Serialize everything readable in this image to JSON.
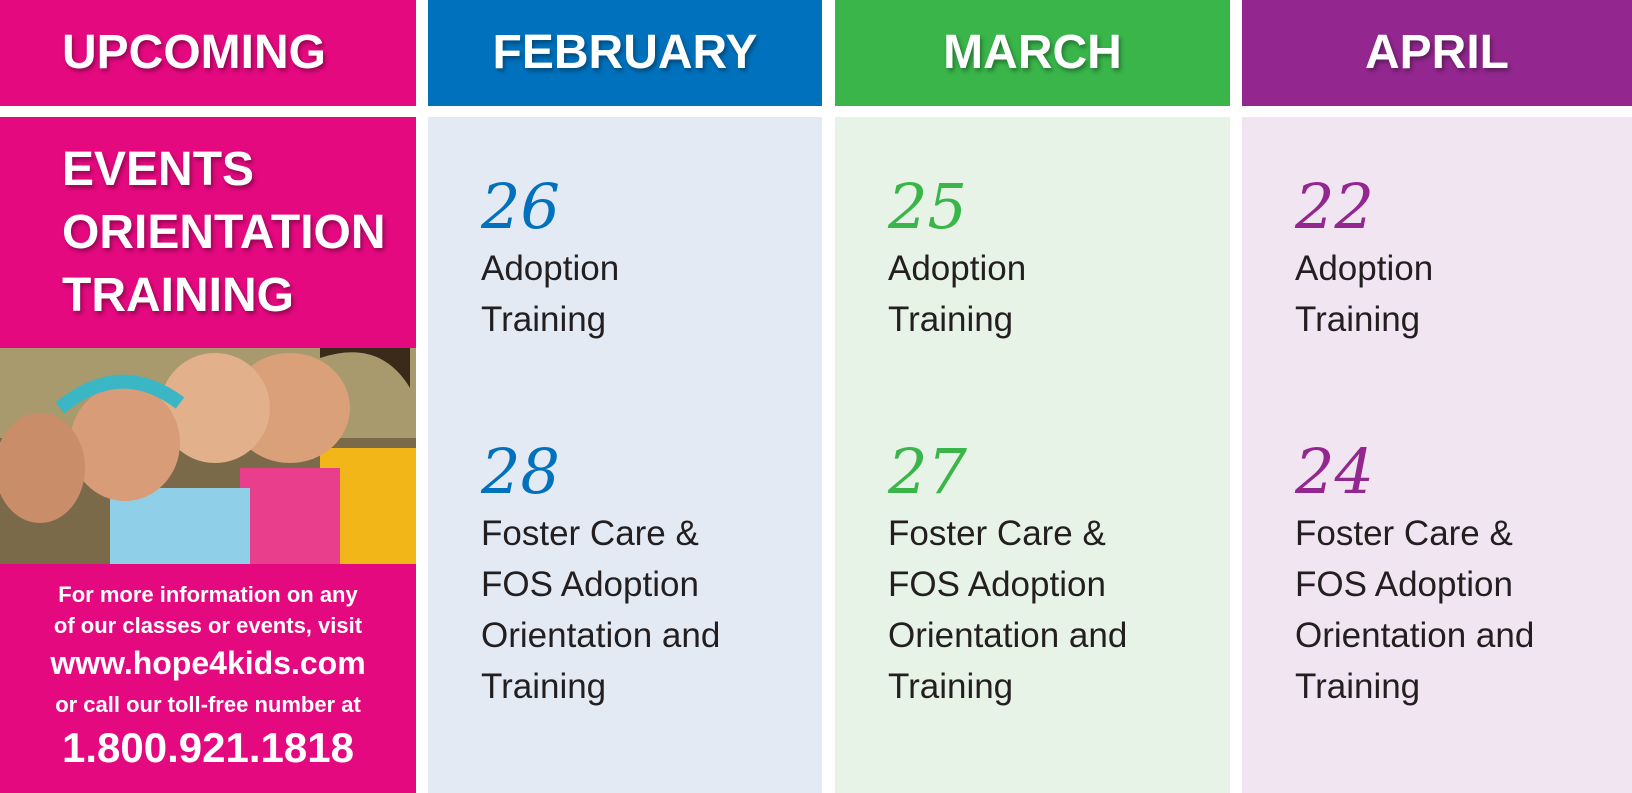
{
  "sidebar": {
    "heading": "UPCOMING",
    "subheading": [
      "EVENTS",
      "ORIENTATION",
      "TRAINING"
    ],
    "info": [
      "For more information on any",
      "of our classes or events, visit"
    ],
    "website": "www.hope4kids.com",
    "call": "or call our toll-free number at",
    "phone": "1.800.921.1818"
  },
  "months": [
    {
      "name": "FEBRUARY",
      "color": "#0071bc",
      "background": "#e3eaf4",
      "events": [
        {
          "day": 26,
          "title": [
            "Adoption",
            "Training"
          ]
        },
        {
          "day": 28,
          "title": [
            "Foster Care &",
            "FOS Adoption",
            "Orientation and",
            "Training"
          ]
        }
      ]
    },
    {
      "name": "MARCH",
      "color": "#39b54a",
      "background": "#e8f3e7",
      "events": [
        {
          "day": 25,
          "title": [
            "Adoption",
            "Training"
          ]
        },
        {
          "day": 27,
          "title": [
            "Foster Care &",
            "FOS Adoption",
            "Orientation and",
            "Training"
          ]
        }
      ]
    },
    {
      "name": "APRIL",
      "color": "#93278f",
      "background": "#f1e5f1",
      "events": [
        {
          "day": 22,
          "title": [
            "Adoption",
            "Training"
          ]
        },
        {
          "day": 24,
          "title": [
            "Foster Care &",
            "FOS Adoption",
            "Orientation and",
            "Training"
          ]
        }
      ]
    }
  ]
}
